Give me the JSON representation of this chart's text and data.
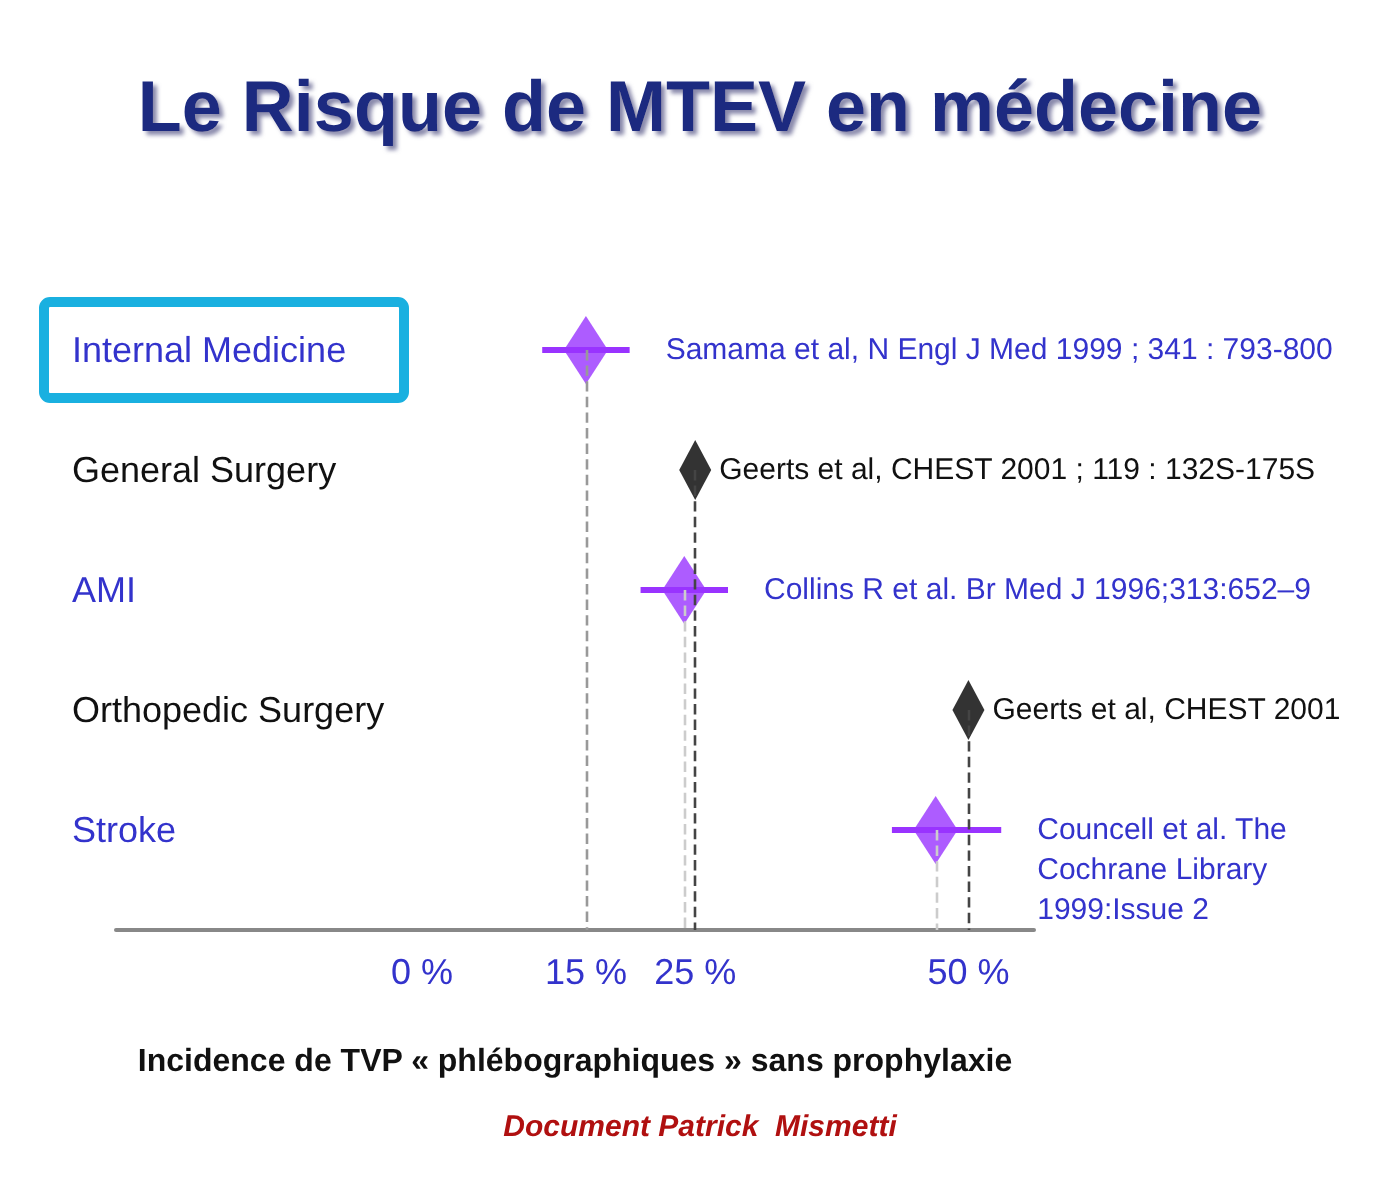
{
  "chart_data": {
    "type": "scatter",
    "title": "Le Risque de MTEV en médecine",
    "xlabel": "Incidence de TVP « phlébographiques » sans prophylaxie",
    "orientation": "horizontal",
    "marker": "diamond",
    "categories": [
      "Internal Medicine",
      "General Surgery",
      "AMI",
      "Orthopedic Surgery",
      "Stroke"
    ],
    "values": [
      15,
      25,
      24,
      50,
      47
    ],
    "colors": [
      "#9933ff",
      "#000000",
      "#9933ff",
      "#000000",
      "#9933ff"
    ],
    "errors": [
      [
        11,
        19
      ],
      null,
      [
        20,
        28
      ],
      null,
      [
        43,
        53
      ]
    ],
    "xlim": [
      -28,
      56
    ],
    "xticks": [
      {
        "value": 0,
        "label": "0 %"
      },
      {
        "value": 15,
        "label": "15 %"
      },
      {
        "value": 25,
        "label": "25 %"
      },
      {
        "value": 50,
        "label": "50 %"
      }
    ],
    "ref_lines": [
      {
        "axis": "x",
        "value": 15,
        "color": "#999999",
        "line_style": "dashed"
      },
      {
        "axis": "x",
        "value": 24,
        "color": "#cccccc",
        "line_style": "dashed"
      },
      {
        "axis": "x",
        "value": 25,
        "color": "#444444",
        "line_style": "dashed"
      },
      {
        "axis": "x",
        "value": 47,
        "color": "#cccccc",
        "line_style": "dashed"
      },
      {
        "axis": "x",
        "value": 50,
        "color": "#444444",
        "line_style": "dashed"
      }
    ],
    "annotations": [
      "Samama et al, N Engl J Med 1999 ; 341 : 793-800",
      "Geerts et al, CHEST 2001 ; 119 : 132S-175S",
      "Collins R et al. Br Med J 1996;313:652–9",
      "Geerts et al, CHEST 2001",
      "Councell et al. The Cochrane Library 1999:Issue 2",
      "Document Patrick  Mismetti"
    ],
    "grid": false
  }
}
